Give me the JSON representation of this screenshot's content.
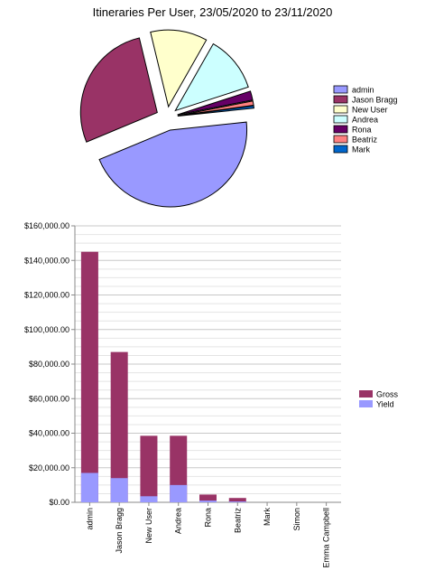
{
  "title": "Itineraries Per User, 23/05/2020 to 23/11/2020",
  "chart_data": [
    {
      "type": "pie",
      "title": "Itineraries Per User, 23/05/2020 to 23/11/2020",
      "legend_position": "right",
      "slices": [
        {
          "label": "admin",
          "value": 45.4,
          "color": "#9999ff"
        },
        {
          "label": "Jason Bragg",
          "value": 27.5,
          "color": "#993366"
        },
        {
          "label": "New User",
          "value": 12.0,
          "color": "#ffffcc"
        },
        {
          "label": "Andrea",
          "value": 11.8,
          "color": "#ccffff"
        },
        {
          "label": "Rona",
          "value": 1.9,
          "color": "#660066"
        },
        {
          "label": "Beatriz",
          "value": 0.9,
          "color": "#ff8080"
        },
        {
          "label": "Mark",
          "value": 0.5,
          "color": "#0066cc"
        }
      ]
    },
    {
      "type": "bar",
      "stacked": true,
      "grid": true,
      "legend_position": "right",
      "categories": [
        "admin",
        "Jason Bragg",
        "New User",
        "Andrea",
        "Rona",
        "Beatriz",
        "Mark",
        "Simon",
        "Emma Campbell"
      ],
      "ylim": [
        0,
        160000
      ],
      "yticks": [
        "$0.00",
        "$20,000.00",
        "$40,000.00",
        "$60,000.00",
        "$80,000.00",
        "$100,000.00",
        "$120,000.00",
        "$140,000.00",
        "$160,000.00"
      ],
      "series": [
        {
          "name": "Yield",
          "color": "#9999ff",
          "values": [
            17000,
            14000,
            3500,
            10000,
            1000,
            500,
            0,
            0,
            0
          ]
        },
        {
          "name": "Gross",
          "color": "#993366",
          "values": [
            145000,
            87000,
            38500,
            38500,
            4500,
            2500,
            0,
            0,
            0
          ]
        }
      ]
    }
  ]
}
